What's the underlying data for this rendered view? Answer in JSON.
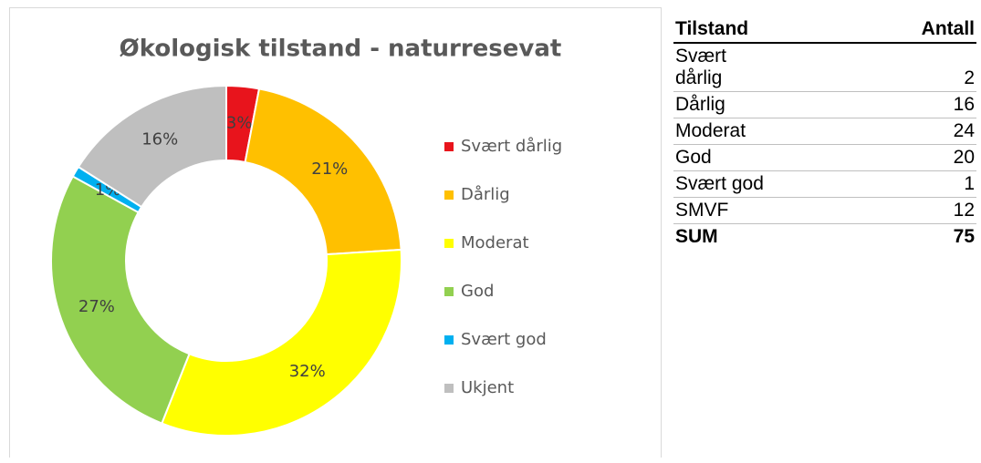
{
  "chart_data": {
    "type": "donut",
    "title": "Økologisk tilstand - naturresevat",
    "categories": [
      "Svært dårlig",
      "Dårlig",
      "Moderat",
      "God",
      "Svært god",
      "Ukjent"
    ],
    "values": [
      3,
      21,
      32,
      27,
      1,
      16
    ],
    "value_labels": [
      "3%",
      "21%",
      "32%",
      "27%",
      "1%",
      "16%"
    ],
    "colors": [
      "#e8141c",
      "#ffc000",
      "#ffff00",
      "#92d050",
      "#00b0f0",
      "#bfbfbf"
    ],
    "legend": "right"
  },
  "table": {
    "header": [
      "Tilstand",
      "Antall"
    ],
    "rows": [
      [
        "Svært dårlig",
        2
      ],
      [
        "Dårlig",
        16
      ],
      [
        "Moderat",
        24
      ],
      [
        "God",
        20
      ],
      [
        "Svært god",
        1
      ],
      [
        "SMVF",
        12
      ],
      [
        "SUM",
        75
      ]
    ]
  }
}
